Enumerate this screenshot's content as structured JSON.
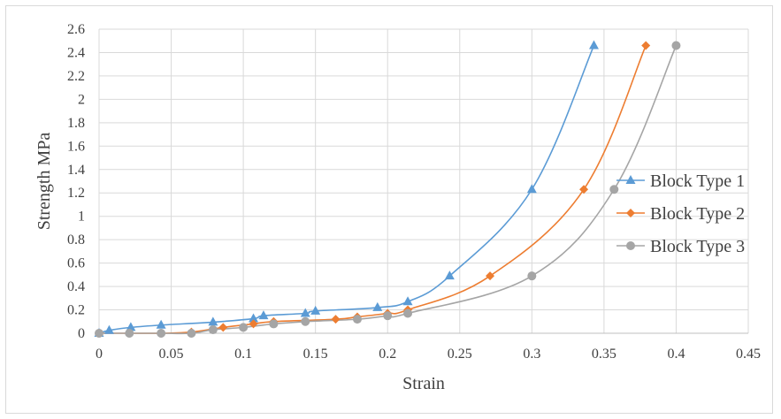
{
  "chart_data": {
    "type": "scatter",
    "xlabel": "Strain",
    "ylabel": "Strength MPa",
    "xlim": [
      0,
      0.45
    ],
    "ylim": [
      0,
      2.6
    ],
    "x_ticks": [
      "0",
      "0.05",
      "0.1",
      "0.15",
      "0.2",
      "0.25",
      "0.3",
      "0.35",
      "0.4",
      "0.45"
    ],
    "y_ticks": [
      "0",
      "0.2",
      "0.4",
      "0.6",
      "0.8",
      "1",
      "1.2",
      "1.4",
      "1.6",
      "1.8",
      "2",
      "2.2",
      "2.4",
      "2.6"
    ],
    "grid": true,
    "legend_position": "right",
    "series": [
      {
        "name": "Block Type 1",
        "color": "#5b9bd5",
        "marker": "triangle",
        "x": [
          0.0,
          0.007,
          0.022,
          0.043,
          0.079,
          0.107,
          0.114,
          0.143,
          0.15,
          0.193,
          0.214,
          0.243,
          0.3,
          0.343
        ],
        "y": [
          0.0,
          0.025,
          0.05,
          0.07,
          0.095,
          0.125,
          0.15,
          0.17,
          0.19,
          0.22,
          0.27,
          0.49,
          1.23,
          2.46
        ]
      },
      {
        "name": "Block Type 2",
        "color": "#ed7d31",
        "marker": "diamond",
        "x": [
          0.0,
          0.021,
          0.043,
          0.064,
          0.086,
          0.107,
          0.121,
          0.164,
          0.179,
          0.2,
          0.214,
          0.271,
          0.336,
          0.379
        ],
        "y": [
          0.0,
          0.0,
          0.0,
          0.01,
          0.05,
          0.08,
          0.1,
          0.12,
          0.14,
          0.17,
          0.2,
          0.49,
          1.23,
          2.46
        ]
      },
      {
        "name": "Block Type 3",
        "color": "#a5a5a5",
        "marker": "circle",
        "x": [
          0.0,
          0.021,
          0.043,
          0.064,
          0.079,
          0.1,
          0.121,
          0.143,
          0.179,
          0.2,
          0.214,
          0.3,
          0.357,
          0.4
        ],
        "y": [
          0.0,
          0.0,
          0.0,
          0.0,
          0.03,
          0.05,
          0.08,
          0.1,
          0.12,
          0.15,
          0.17,
          0.49,
          1.23,
          2.46
        ]
      }
    ]
  }
}
